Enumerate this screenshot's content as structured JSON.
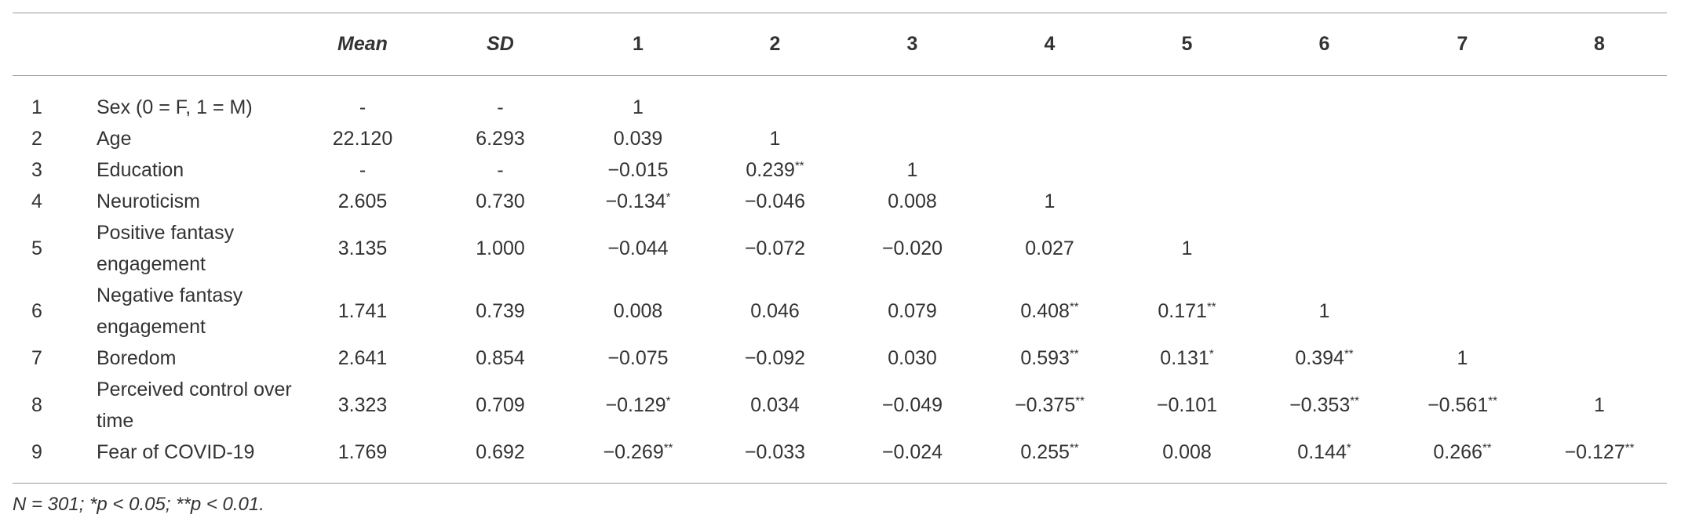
{
  "table": {
    "columns": [
      "Mean",
      "SD",
      "1",
      "2",
      "3",
      "4",
      "5",
      "6",
      "7",
      "8"
    ],
    "rows": [
      {
        "num": "1",
        "label": "Sex (0 = F, 1 = M)",
        "cells": [
          "-",
          "-",
          "1"
        ]
      },
      {
        "num": "2",
        "label": "Age",
        "cells": [
          "22.120",
          "6.293",
          "0.039",
          "1"
        ]
      },
      {
        "num": "3",
        "label": "Education",
        "cells": [
          "-",
          "-",
          "−0.015",
          {
            "text": "0.239",
            "sup": "**"
          },
          "1"
        ]
      },
      {
        "num": "4",
        "label": "Neuroticism",
        "cells": [
          "2.605",
          "0.730",
          {
            "text": "−0.134",
            "sup": "*"
          },
          "−0.046",
          "0.008",
          "1"
        ]
      },
      {
        "num": "5",
        "label": "Positive fantasy engagement",
        "cells": [
          "3.135",
          "1.000",
          "−0.044",
          "−0.072",
          "−0.020",
          "0.027",
          "1"
        ]
      },
      {
        "num": "6",
        "label": "Negative fantasy engagement",
        "cells": [
          "1.741",
          "0.739",
          "0.008",
          "0.046",
          "0.079",
          {
            "text": "0.408",
            "sup": "**"
          },
          {
            "text": "0.171",
            "sup": "**"
          },
          "1"
        ]
      },
      {
        "num": "7",
        "label": "Boredom",
        "cells": [
          "2.641",
          "0.854",
          "−0.075",
          "−0.092",
          "0.030",
          {
            "text": "0.593",
            "sup": "**"
          },
          {
            "text": "0.131",
            "sup": "*"
          },
          {
            "text": "0.394",
            "sup": "**"
          },
          "1"
        ]
      },
      {
        "num": "8",
        "label": "Perceived control over time",
        "cells": [
          "3.323",
          "0.709",
          {
            "text": "−0.129",
            "sup": "*"
          },
          "0.034",
          "−0.049",
          {
            "text": "−0.375",
            "sup": "**"
          },
          "−0.101",
          {
            "text": "−0.353",
            "sup": "**"
          },
          {
            "text": "−0.561",
            "sup": "**"
          },
          "1"
        ]
      },
      {
        "num": "9",
        "label": "Fear of COVID-19",
        "cells": [
          "1.769",
          "0.692",
          {
            "text": "−0.269",
            "sup": "**"
          },
          "−0.033",
          "−0.024",
          {
            "text": "0.255",
            "sup": "**"
          },
          "0.008",
          {
            "text": "0.144",
            "sup": "*"
          },
          {
            "text": "0.266",
            "sup": "**"
          },
          {
            "text": "−0.127",
            "sup": "**"
          }
        ]
      }
    ]
  },
  "footnote": "N = 301; *p < 0.05; **p < 0.01."
}
